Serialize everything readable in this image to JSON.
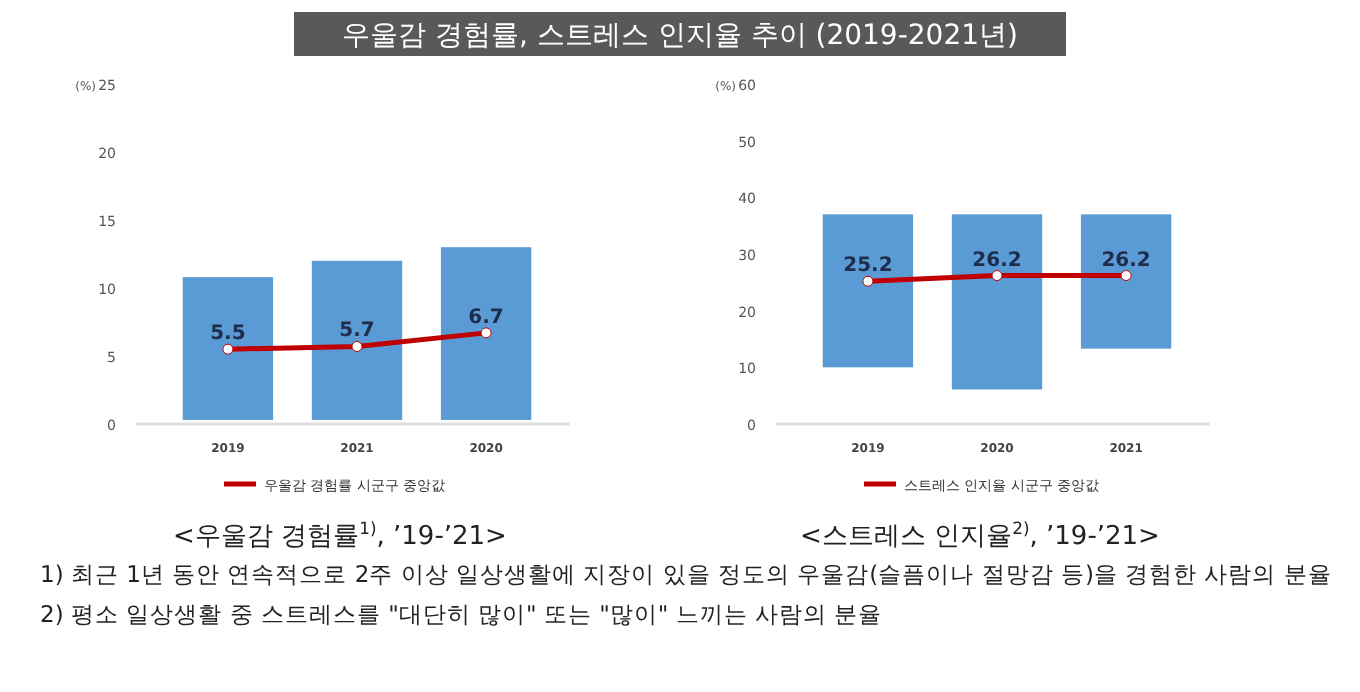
{
  "chart_data": [
    {
      "type": "bar",
      "title": "우울감 경험률, 스트레스 인지율 추이 (2019-2021년)",
      "subtitle": "<우울감 경험률$^{1)}$, ’19-’21>",
      "ylabel": "(%)",
      "categories": [
        "2019",
        "2021",
        "2020"
      ],
      "ylim": [
        0,
        25
      ],
      "yticks": [
        0,
        5,
        10,
        15,
        20,
        25
      ],
      "grid": false,
      "legend": "bottom",
      "series": [
        {
          "color": "#5b9bd5",
          "base": [
            0.3,
            0.3,
            0.3
          ],
          "values": [
            10.5,
            11.7,
            12.7
          ]
        },
        {
          "type": "line",
          "name": "우울감 경험률 시군구 중앙값",
          "color": "#c00000",
          "marker": "circle",
          "values": [
            5.5,
            5.7,
            6.7
          ],
          "value_labels": [
            "5.5",
            "5.7",
            "6.7"
          ]
        }
      ],
      "annotations": [
        "1) 최근 1년 동안 연속적으로 2주 이상 일상생활에 지장이 있을 정도의 우울감(슬픔이나 절망감 등)을 경험한 사람의 분율",
        "2) 평소 일상생활 중 스트레스를 \"대단히 많이\" 또는 \"많이\" 느끼는 사람의 분율"
      ]
    },
    {
      "type": "bar",
      "subtitle": "<스트레스 인지율$^{2)}$, ’19-’21>",
      "ylabel": "(%)",
      "categories": [
        "2019",
        "2020",
        "2021"
      ],
      "ylim": [
        0,
        60
      ],
      "yticks": [
        0,
        10,
        20,
        30,
        40,
        50,
        60
      ],
      "grid": false,
      "legend": "bottom",
      "series": [
        {
          "color": "#5b9bd5",
          "base": [
            10,
            6.1,
            13.3
          ],
          "values": [
            27,
            30.9,
            23.7
          ]
        },
        {
          "type": "line",
          "name": "스트레스 인지율 시군구 중앙값",
          "color": "#c00000",
          "marker": "circle",
          "values": [
            25.2,
            26.2,
            26.2
          ],
          "value_labels": [
            "25.2",
            "26.2",
            "26.2"
          ]
        }
      ]
    }
  ]
}
